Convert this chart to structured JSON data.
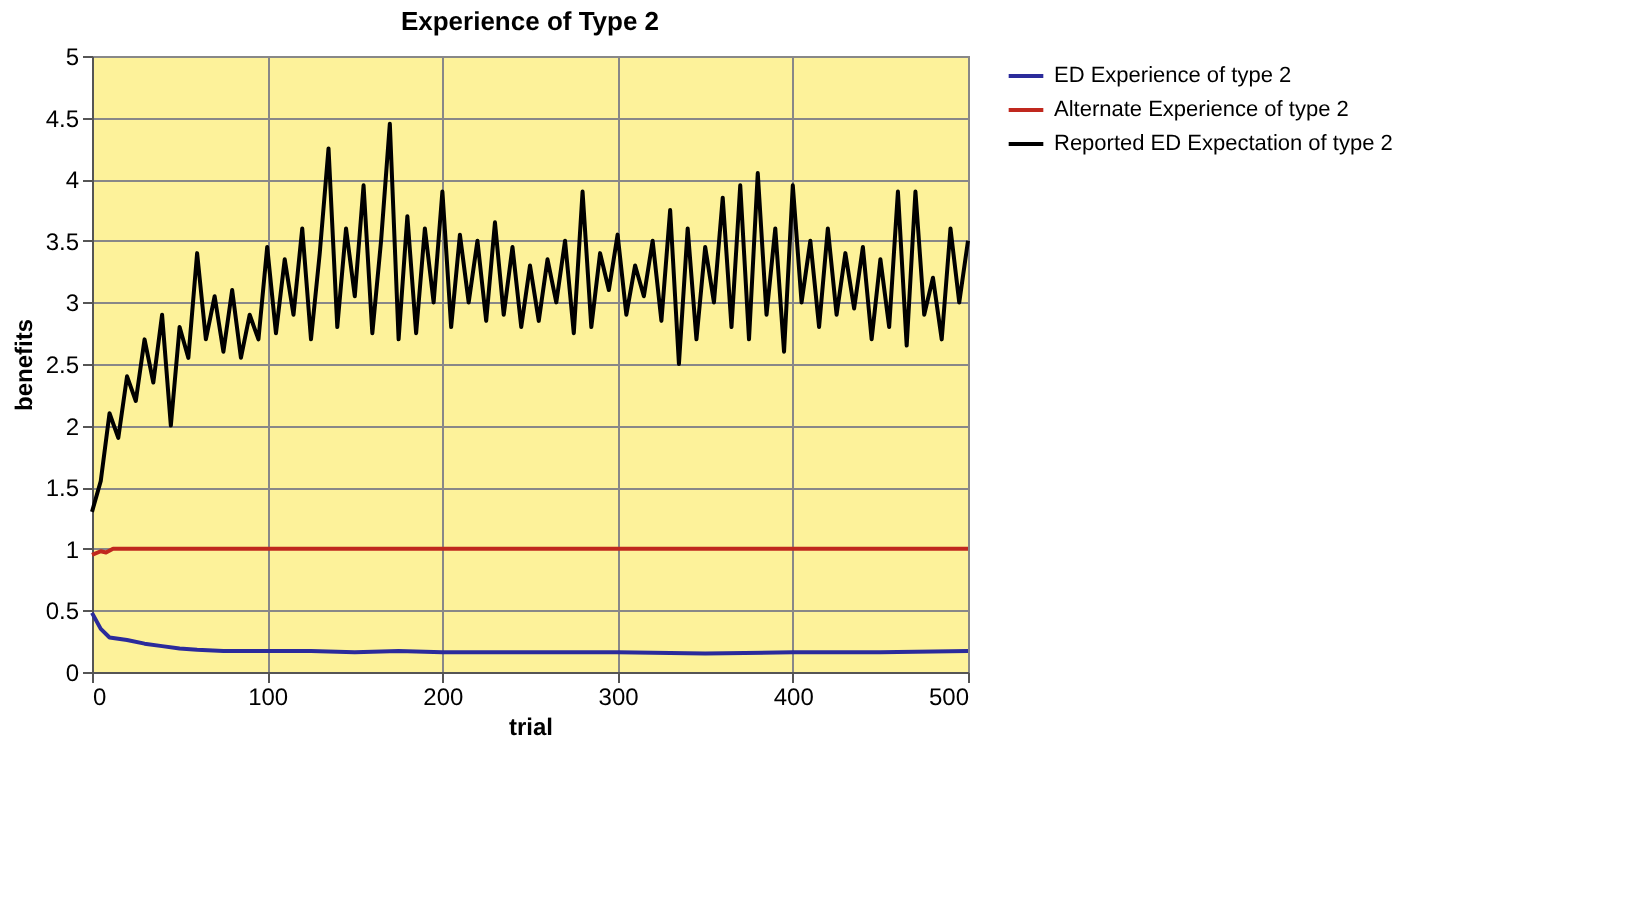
{
  "chart_data": {
    "type": "line",
    "title": "Experience of Type 2",
    "xlabel": "trial",
    "ylabel": "benefits",
    "xlim": [
      0,
      500
    ],
    "xticks": [
      0,
      100,
      200,
      300,
      400,
      500
    ],
    "ylim": [
      0,
      5
    ],
    "yticks": [
      0,
      0.5,
      1,
      1.5,
      2,
      2.5,
      3,
      3.5,
      4,
      4.5,
      5
    ],
    "grid": true,
    "legend": "right",
    "marker": "none",
    "line_style": "solid",
    "series": [
      {
        "name": "ED Experience of type 2",
        "color": "#2b2b9b",
        "x": [
          0,
          5,
          10,
          20,
          30,
          40,
          50,
          60,
          75,
          100,
          125,
          150,
          175,
          200,
          250,
          300,
          350,
          400,
          450,
          500
        ],
        "values": [
          0.48,
          0.35,
          0.28,
          0.26,
          0.23,
          0.21,
          0.19,
          0.18,
          0.17,
          0.17,
          0.17,
          0.16,
          0.17,
          0.16,
          0.16,
          0.16,
          0.15,
          0.16,
          0.16,
          0.17
        ]
      },
      {
        "name": "Alternate Experience of type 2",
        "color": "#c0281e",
        "x": [
          0,
          5,
          8,
          12,
          20,
          500
        ],
        "values": [
          0.95,
          0.98,
          0.97,
          1.0,
          1.0,
          1.0
        ]
      },
      {
        "name": "Reported ED Expectation of type 2",
        "color": "#000000",
        "x": [
          0,
          5,
          10,
          15,
          20,
          25,
          30,
          35,
          40,
          45,
          50,
          55,
          60,
          65,
          70,
          75,
          80,
          85,
          90,
          95,
          100,
          105,
          110,
          115,
          120,
          125,
          130,
          135,
          140,
          145,
          150,
          155,
          160,
          165,
          170,
          175,
          180,
          185,
          190,
          195,
          200,
          205,
          210,
          215,
          220,
          225,
          230,
          235,
          240,
          245,
          250,
          255,
          260,
          265,
          270,
          275,
          280,
          285,
          290,
          295,
          300,
          305,
          310,
          315,
          320,
          325,
          330,
          335,
          340,
          345,
          350,
          355,
          360,
          365,
          370,
          375,
          380,
          385,
          390,
          395,
          400,
          405,
          410,
          415,
          420,
          425,
          430,
          435,
          440,
          445,
          450,
          455,
          460,
          465,
          470,
          475,
          480,
          485,
          490,
          495,
          500
        ],
        "values": [
          1.3,
          1.55,
          2.1,
          1.9,
          2.4,
          2.2,
          2.7,
          2.35,
          2.9,
          2.0,
          2.8,
          2.55,
          3.4,
          2.7,
          3.05,
          2.6,
          3.1,
          2.55,
          2.9,
          2.7,
          3.45,
          2.75,
          3.35,
          2.9,
          3.6,
          2.7,
          3.4,
          4.25,
          2.8,
          3.6,
          3.05,
          3.95,
          2.75,
          3.5,
          4.45,
          2.7,
          3.7,
          2.75,
          3.6,
          3.0,
          3.9,
          2.8,
          3.55,
          3.0,
          3.5,
          2.85,
          3.65,
          2.9,
          3.45,
          2.8,
          3.3,
          2.85,
          3.35,
          3.0,
          3.5,
          2.75,
          3.9,
          2.8,
          3.4,
          3.1,
          3.55,
          2.9,
          3.3,
          3.05,
          3.5,
          2.85,
          3.75,
          2.5,
          3.6,
          2.7,
          3.45,
          3.0,
          3.85,
          2.8,
          3.95,
          2.7,
          4.05,
          2.9,
          3.6,
          2.6,
          3.95,
          3.0,
          3.5,
          2.8,
          3.6,
          2.9,
          3.4,
          2.95,
          3.45,
          2.7,
          3.35,
          2.8,
          3.9,
          2.65,
          3.9,
          2.9,
          3.2,
          2.7,
          3.6,
          3.0,
          3.5
        ]
      }
    ]
  }
}
